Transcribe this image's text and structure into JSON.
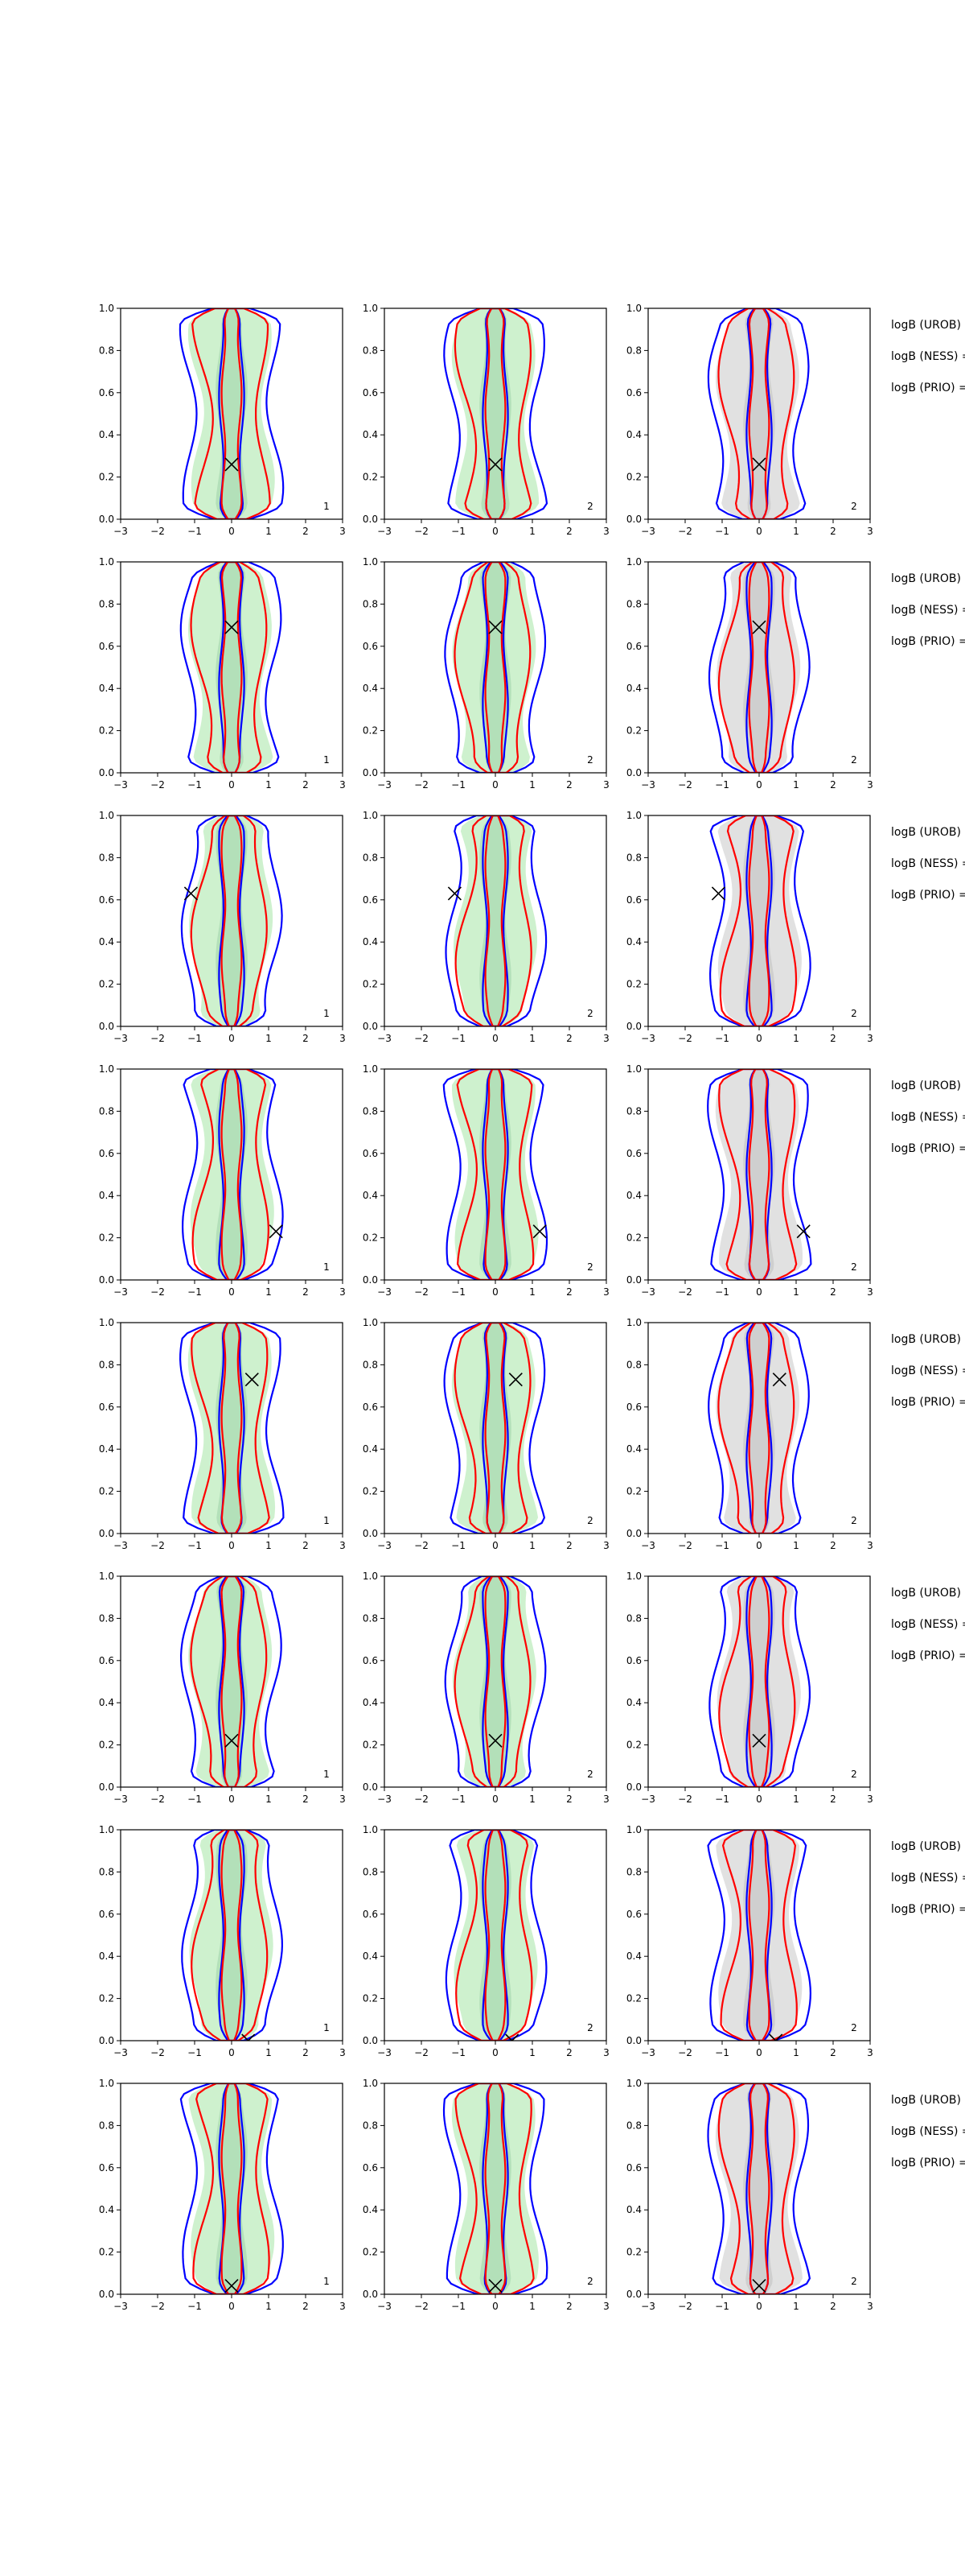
{
  "figure": {
    "right_labels": [
      "logB (UROB) =",
      "logB (NESS) =",
      "logB (PRIO) ="
    ]
  },
  "chart_data": {
    "type": "contour-grid",
    "rows": 8,
    "cols": 3,
    "xlim": [
      -3,
      3
    ],
    "ylim": [
      0,
      1
    ],
    "xticks": [
      -3,
      -2,
      -1,
      0,
      1,
      2,
      3
    ],
    "yticks": [
      0.0,
      0.2,
      0.4,
      0.6,
      0.8,
      1.0
    ],
    "grid": false,
    "panel_labels": [
      "1",
      "2",
      "2"
    ],
    "colors": {
      "blue_contour": "#0000ff",
      "red_contour": "#ff0000",
      "green_fill": "#c6efc6",
      "gray_fill": "#dcdcdc",
      "marker": "#000000"
    },
    "markers": [
      {
        "row": 1,
        "x": 0.0,
        "y": 0.26
      },
      {
        "row": 2,
        "x": 0.0,
        "y": 0.69
      },
      {
        "row": 3,
        "x": -1.1,
        "y": 0.63
      },
      {
        "row": 4,
        "x": 1.2,
        "y": 0.23
      },
      {
        "row": 5,
        "x": 0.55,
        "y": 0.73
      },
      {
        "row": 6,
        "x": 0.0,
        "y": 0.22
      },
      {
        "row": 7,
        "x": 0.45,
        "y": 0.0
      },
      {
        "row": 8,
        "x": 0.0,
        "y": 0.04
      }
    ]
  }
}
